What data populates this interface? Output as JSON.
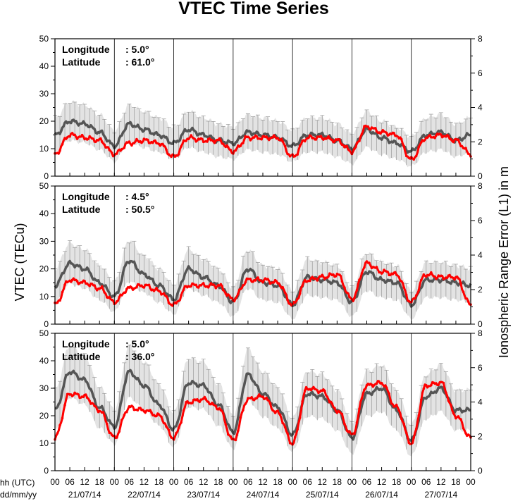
{
  "chart_data": {
    "type": "line",
    "title": "VTEC Time Series",
    "ylabel_left": "VTEC (TECu)",
    "ylabel_right": "Ionospheric Range Error (L1) in m",
    "x_caption_hours": "hh (UTC)",
    "x_caption_dates": "dd/mm/yy",
    "ylim_left": [
      0,
      50
    ],
    "ylim_right": [
      0,
      8
    ],
    "left_ticks": [
      "0",
      "10",
      "20",
      "30",
      "40",
      "50"
    ],
    "right_ticks": [
      "0",
      "2",
      "4",
      "6",
      "8"
    ],
    "hour_ticks": [
      "00",
      "06",
      "12",
      "18"
    ],
    "final_hour_tick": "00",
    "dates": [
      "21/07/14",
      "22/07/14",
      "23/07/14",
      "24/07/14",
      "25/07/14",
      "26/07/14",
      "27/07/14"
    ],
    "info_labels": {
      "longitude": "Longitude",
      "latitude": "Latitude"
    },
    "colors": {
      "current": "#ff0000",
      "mean": "#555555",
      "band": "#cccccc",
      "errorbar": "#999999"
    },
    "panels": [
      {
        "longitude": ":   5.0°",
        "latitude": ": 61.0°",
        "series": [
          {
            "role": "mean",
            "values": [
              15,
              20,
              19,
              16,
              11,
              19,
              17,
              15,
              12,
              17,
              15,
              13,
              12,
              16,
              15,
              14,
              11,
              15,
              15,
              13,
              10,
              17,
              14,
              12,
              9,
              15,
              16,
              13
            ]
          },
          {
            "role": "current",
            "values": [
              8,
              15,
              14,
              13,
              8,
              12,
              13,
              12,
              7,
              14,
              13,
              13,
              9,
              14,
              14,
              14,
              7,
              14,
              14,
              13,
              9,
              18,
              16,
              15,
              6,
              14,
              15,
              13
            ]
          }
        ]
      },
      {
        "longitude": ":   4.5°",
        "latitude": ": 50.5°",
        "series": [
          {
            "role": "mean",
            "values": [
              14,
              22,
              20,
              15,
              10,
              23,
              18,
              14,
              9,
              20,
              17,
              14,
              8,
              20,
              15,
              14,
              7,
              17,
              16,
              15,
              8,
              19,
              16,
              15,
              7,
              16,
              16,
              15
            ]
          },
          {
            "role": "current",
            "values": [
              7,
              16,
              15,
              13,
              8,
              13,
              14,
              12,
              7,
              14,
              14,
              14,
              9,
              16,
              16,
              15,
              7,
              16,
              17,
              18,
              9,
              22,
              19,
              18,
              8,
              18,
              17,
              17
            ]
          }
        ]
      },
      {
        "longitude": ":   5.0°",
        "latitude": ": 36.0°",
        "series": [
          {
            "role": "mean",
            "values": [
              22,
              36,
              33,
              23,
              16,
              36,
              31,
              24,
              15,
              32,
              31,
              24,
              14,
              35,
              28,
              23,
              13,
              28,
              27,
              22,
              12,
              28,
              30,
              22,
              11,
              27,
              30,
              22
            ]
          },
          {
            "role": "current",
            "values": [
              12,
              28,
              27,
              22,
              12,
              23,
              22,
              20,
              12,
              25,
              26,
              23,
              11,
              26,
              27,
              21,
              10,
              30,
              29,
              22,
              13,
              31,
              32,
              23,
              10,
              31,
              32,
              20
            ]
          }
        ]
      }
    ]
  }
}
